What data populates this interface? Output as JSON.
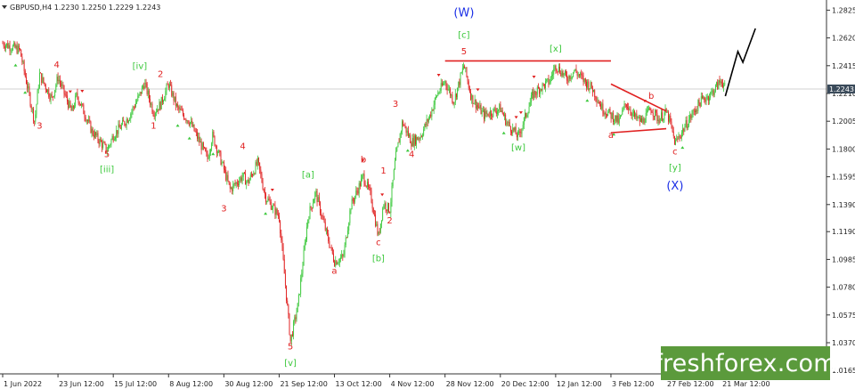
{
  "symbol_header": "GBPUSD,H4  1.2230 1.2250 1.2229 1.2243",
  "watermark": "freshforex.com",
  "chart_data": {
    "type": "candlestick",
    "symbol": "GBPUSD",
    "timeframe": "H4",
    "ohlc_header": {
      "open": 1.223,
      "high": 1.225,
      "low": 1.2229,
      "close": 1.2243
    },
    "current_price": 1.2243,
    "current_price_label": "1.2243",
    "ylim": [
      1.014,
      1.29
    ],
    "y_ticks": [
      "1.2825",
      "1.2620",
      "1.2415",
      "1.2210",
      "1.2005",
      "1.1800",
      "1.1595",
      "1.1390",
      "1.1190",
      "1.0985",
      "1.0780",
      "1.0575",
      "1.0370",
      "1.0165"
    ],
    "x_ticks": [
      "1 Jun 2022",
      "23 Jun 12:00",
      "15 Jul 12:00",
      "8 Aug 12:00",
      "30 Aug 12:00",
      "21 Sep 12:00",
      "13 Oct 12:00",
      "4 Nov 12:00",
      "28 Nov 12:00",
      "20 Dec 12:00",
      "12 Jan 12:00",
      "3 Feb 12:00",
      "27 Feb 12:00",
      "21 Mar 12:00"
    ],
    "price_path": [
      {
        "x": "1 Jun 2022",
        "y": 1.258
      },
      {
        "x": "8 Jun",
        "y": 1.253
      },
      {
        "x": "14 Jun",
        "y": 1.2
      },
      {
        "x": "16 Jun",
        "y": 1.235
      },
      {
        "x": "21 Jun",
        "y": 1.217
      },
      {
        "x": "23 Jun 12:00",
        "y": 1.233
      },
      {
        "x": "29 Jun",
        "y": 1.207
      },
      {
        "x": "1 Jul",
        "y": 1.22
      },
      {
        "x": "7 Jul",
        "y": 1.193
      },
      {
        "x": "13 Jul",
        "y": 1.179
      },
      {
        "x": "15 Jul 12:00",
        "y": 1.19
      },
      {
        "x": "22 Jul",
        "y": 1.203
      },
      {
        "x": "27 Jul",
        "y": 1.22
      },
      {
        "x": "29 Jul",
        "y": 1.229
      },
      {
        "x": "2 Aug",
        "y": 1.207
      },
      {
        "x": "5 Aug",
        "y": 1.213
      },
      {
        "x": "8 Aug 12:00",
        "y": 1.228
      },
      {
        "x": "12 Aug",
        "y": 1.21
      },
      {
        "x": "17 Aug",
        "y": 1.2
      },
      {
        "x": "24 Aug",
        "y": 1.173
      },
      {
        "x": "26 Aug",
        "y": 1.19
      },
      {
        "x": "30 Aug 12:00",
        "y": 1.165
      },
      {
        "x": "2 Sep",
        "y": 1.15
      },
      {
        "x": "7 Sep",
        "y": 1.16
      },
      {
        "x": "9 Sep",
        "y": 1.155
      },
      {
        "x": "13 Sep",
        "y": 1.17
      },
      {
        "x": "16 Sep",
        "y": 1.145
      },
      {
        "x": "21 Sep 12:00",
        "y": 1.13
      },
      {
        "x": "26 Sep",
        "y": 1.038
      },
      {
        "x": "29 Sep",
        "y": 1.065
      },
      {
        "x": "3 Oct",
        "y": 1.13
      },
      {
        "x": "6 Oct",
        "y": 1.148
      },
      {
        "x": "10 Oct",
        "y": 1.12
      },
      {
        "x": "13 Oct 12:00",
        "y": 1.097
      },
      {
        "x": "17 Oct",
        "y": 1.1
      },
      {
        "x": "20 Oct",
        "y": 1.138
      },
      {
        "x": "25 Oct",
        "y": 1.16
      },
      {
        "x": "28 Oct",
        "y": 1.145
      },
      {
        "x": "31 Oct",
        "y": 1.115
      },
      {
        "x": "2 Nov",
        "y": 1.14
      },
      {
        "x": "4 Nov 12:00",
        "y": 1.135
      },
      {
        "x": "7 Nov",
        "y": 1.173
      },
      {
        "x": "10 Nov",
        "y": 1.2
      },
      {
        "x": "14 Nov",
        "y": 1.185
      },
      {
        "x": "18 Nov",
        "y": 1.19
      },
      {
        "x": "22 Nov",
        "y": 1.205
      },
      {
        "x": "25 Nov",
        "y": 1.22
      },
      {
        "x": "28 Nov 12:00",
        "y": 1.23
      },
      {
        "x": "2 Dec",
        "y": 1.215
      },
      {
        "x": "6 Dec",
        "y": 1.242
      },
      {
        "x": "9 Dec",
        "y": 1.218
      },
      {
        "x": "14 Dec",
        "y": 1.205
      },
      {
        "x": "20 Dec 12:00",
        "y": 1.21
      },
      {
        "x": "23 Dec",
        "y": 1.2
      },
      {
        "x": "28 Dec",
        "y": 1.189
      },
      {
        "x": "3 Jan",
        "y": 1.22
      },
      {
        "x": "6 Jan",
        "y": 1.225
      },
      {
        "x": "10 Jan",
        "y": 1.23
      },
      {
        "x": "12 Jan 12:00",
        "y": 1.242
      },
      {
        "x": "17 Jan",
        "y": 1.232
      },
      {
        "x": "20 Jan",
        "y": 1.238
      },
      {
        "x": "24 Jan",
        "y": 1.23
      },
      {
        "x": "27 Jan",
        "y": 1.225
      },
      {
        "x": "31 Jan",
        "y": 1.21
      },
      {
        "x": "3 Feb 12:00",
        "y": 1.205
      },
      {
        "x": "7 Feb",
        "y": 1.2
      },
      {
        "x": "10 Feb",
        "y": 1.214
      },
      {
        "x": "14 Feb",
        "y": 1.203
      },
      {
        "x": "17 Feb",
        "y": 1.2
      },
      {
        "x": "21 Feb",
        "y": 1.21
      },
      {
        "x": "24 Feb",
        "y": 1.202
      },
      {
        "x": "27 Feb 12:00",
        "y": 1.207
      },
      {
        "x": "1 Mar",
        "y": 1.2
      },
      {
        "x": "3 Mar",
        "y": 1.184
      },
      {
        "x": "8 Mar",
        "y": 1.2
      },
      {
        "x": "13 Mar",
        "y": 1.215
      },
      {
        "x": "17 Mar",
        "y": 1.22
      },
      {
        "x": "21 Mar 12:00",
        "y": 1.231
      },
      {
        "x": "23 Mar",
        "y": 1.2243
      }
    ],
    "forecast_path": [
      {
        "x": "23 Mar",
        "y": 1.219
      },
      {
        "x": "28 Mar",
        "y": 1.252
      },
      {
        "x": "30 Mar",
        "y": 1.244
      },
      {
        "x": "4 Apr",
        "y": 1.269
      }
    ],
    "lines": [
      {
        "name": "[x] resistance",
        "from": {
          "x": "28 Nov 12:00",
          "y": 1.245
        },
        "to": {
          "x": "3 Feb 12:00",
          "y": 1.245
        },
        "color": "#e02020"
      },
      {
        "name": "triangle upper",
        "from": {
          "x": "3 Feb 12:00",
          "y": 1.228
        },
        "to": {
          "x": "27 Feb 12:00",
          "y": 1.208
        },
        "color": "#e02020"
      },
      {
        "name": "triangle lower",
        "from": {
          "x": "3 Feb 12:00",
          "y": 1.192
        },
        "to": {
          "x": "27 Feb 12:00",
          "y": 1.195
        },
        "color": "#e02020"
      }
    ],
    "annotations": [
      {
        "text": "3",
        "x": "16 Jun",
        "y": 1.195,
        "color": "#e02020",
        "size": "small"
      },
      {
        "text": "4",
        "x": "23 Jun",
        "y": 1.24,
        "color": "#e02020",
        "size": "small"
      },
      {
        "text": "5",
        "x": "13 Jul",
        "y": 1.174,
        "color": "#e02020",
        "size": "small"
      },
      {
        "text": "[iii]",
        "x": "13 Jul",
        "y": 1.163,
        "color": "#3cc83c",
        "size": "small"
      },
      {
        "text": "[iv]",
        "x": "27 Jul",
        "y": 1.239,
        "color": "#3cc83c",
        "size": "small"
      },
      {
        "text": "1",
        "x": "2 Aug",
        "y": 1.195,
        "color": "#e02020",
        "size": "small"
      },
      {
        "text": "2",
        "x": "5 Aug",
        "y": 1.233,
        "color": "#e02020",
        "size": "small"
      },
      {
        "text": "3",
        "x": "30 Aug 12:00",
        "y": 1.134,
        "color": "#e02020",
        "size": "small"
      },
      {
        "text": "4",
        "x": "7 Sep",
        "y": 1.18,
        "color": "#e02020",
        "size": "small"
      },
      {
        "text": "5",
        "x": "26 Sep",
        "y": 1.032,
        "color": "#e02020",
        "size": "small"
      },
      {
        "text": "[v]",
        "x": "26 Sep",
        "y": 1.02,
        "color": "#3cc83c",
        "size": "small"
      },
      {
        "text": "[a]",
        "x": "3 Oct",
        "y": 1.159,
        "color": "#3cc83c",
        "size": "small"
      },
      {
        "text": "a",
        "x": "13 Oct 12:00",
        "y": 1.088,
        "color": "#e02020",
        "size": "small"
      },
      {
        "text": "b",
        "x": "25 Oct",
        "y": 1.17,
        "color": "#e02020",
        "size": "small"
      },
      {
        "text": "c",
        "x": "31 Oct",
        "y": 1.109,
        "color": "#e02020",
        "size": "small"
      },
      {
        "text": "[b]",
        "x": "31 Oct",
        "y": 1.097,
        "color": "#3cc83c",
        "size": "small"
      },
      {
        "text": "1",
        "x": "2 Nov",
        "y": 1.162,
        "color": "#e02020",
        "size": "small"
      },
      {
        "text": "2",
        "x": "4 Nov 12:00",
        "y": 1.125,
        "color": "#e02020",
        "size": "small"
      },
      {
        "text": "3",
        "x": "7 Nov",
        "y": 1.211,
        "color": "#e02020",
        "size": "small"
      },
      {
        "text": "4",
        "x": "14 Nov",
        "y": 1.174,
        "color": "#e02020",
        "size": "small"
      },
      {
        "text": "5",
        "x": "6 Dec",
        "y": 1.25,
        "color": "#e02020",
        "size": "small"
      },
      {
        "text": "[c]",
        "x": "6 Dec",
        "y": 1.262,
        "color": "#3cc83c",
        "size": "small"
      },
      {
        "text": "(W)",
        "x": "6 Dec",
        "y": 1.278,
        "color": "#1a2ee6",
        "size": "big"
      },
      {
        "text": "[w]",
        "x": "28 Dec",
        "y": 1.179,
        "color": "#3cc83c",
        "size": "small"
      },
      {
        "text": "[x]",
        "x": "12 Jan 12:00",
        "y": 1.252,
        "color": "#3cc83c",
        "size": "small"
      },
      {
        "text": "a",
        "x": "3 Feb 12:00",
        "y": 1.188,
        "color": "#e02020",
        "size": "small"
      },
      {
        "text": "b",
        "x": "21 Feb",
        "y": 1.217,
        "color": "#e02020",
        "size": "small"
      },
      {
        "text": "c",
        "x": "3 Mar",
        "y": 1.176,
        "color": "#e02020",
        "size": "small"
      },
      {
        "text": "[y]",
        "x": "3 Mar",
        "y": 1.164,
        "color": "#3cc83c",
        "size": "small"
      },
      {
        "text": "(X)",
        "x": "3 Mar",
        "y": 1.15,
        "color": "#1a2ee6",
        "size": "big"
      }
    ],
    "grid": false,
    "colors": {
      "bull": "#3cc83c",
      "bear": "#e02020",
      "forecast": "#000000",
      "marker_up": "#e02020",
      "marker_down": "#3cc83c",
      "wave_blue": "#1a2ee6",
      "price_tag_bg": "#3a4a5a",
      "price_line": "#c0c0c0"
    }
  }
}
